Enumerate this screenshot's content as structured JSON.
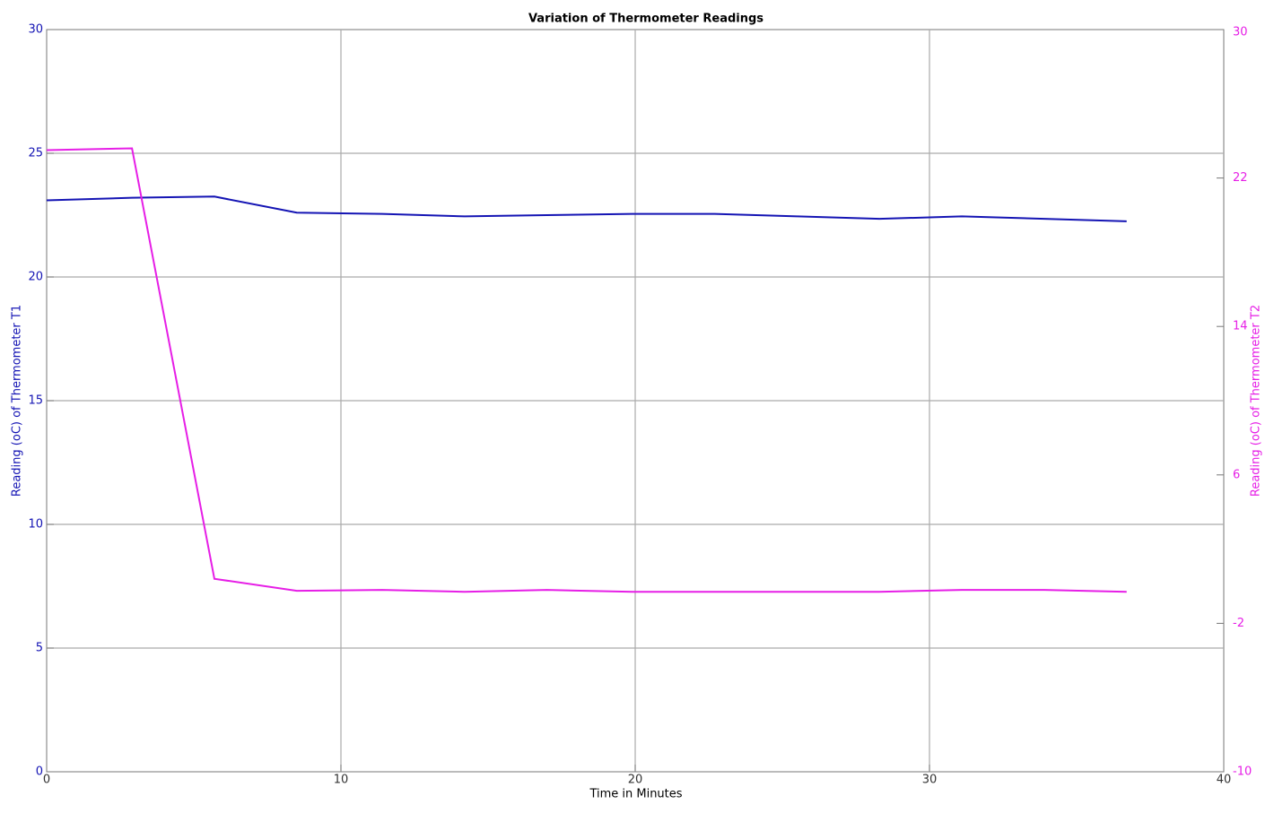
{
  "chart_data": {
    "type": "line",
    "title": "Variation of Thermometer Readings",
    "x_label": "Time in Minutes",
    "y_label": "Reading (oC) of Thermometer T1",
    "y2_label": "Reading (oC) of Thermometer T2",
    "x": [
      0,
      2.9,
      5.7,
      8.5,
      11.4,
      14.2,
      17.0,
      19.9,
      22.7,
      25.5,
      28.3,
      31.1,
      33.9,
      36.7
    ],
    "series": [
      {
        "name": "Thermometer T1",
        "color": "#1414b4",
        "axis": "y",
        "values": [
          23.1,
          23.2,
          23.25,
          22.6,
          22.55,
          22.45,
          22.5,
          22.55,
          22.55,
          22.45,
          22.35,
          22.45,
          22.35,
          22.25
        ]
      },
      {
        "name": "Thermometer T2",
        "color": "#e61ee6",
        "axis": "y2",
        "values": [
          23.5,
          23.6,
          0.4,
          -0.25,
          -0.2,
          -0.3,
          -0.2,
          -0.3,
          -0.3,
          -0.3,
          -0.3,
          -0.2,
          -0.2,
          -0.3
        ]
      }
    ],
    "xlim": [
      0,
      40
    ],
    "xticks": [
      0,
      10,
      20,
      30,
      40
    ],
    "ylim": [
      0,
      30
    ],
    "yticks": [
      0,
      5,
      10,
      15,
      20,
      25,
      30
    ],
    "y2lim": [
      -10,
      30
    ],
    "y2ticks": [
      -10,
      -2,
      6,
      14,
      22,
      30
    ],
    "grid": true
  }
}
